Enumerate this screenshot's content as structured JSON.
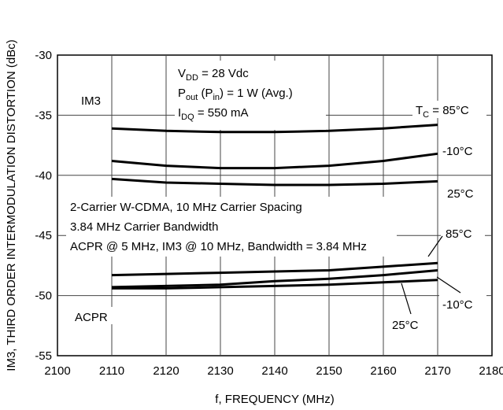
{
  "chart_data": {
    "type": "line",
    "ylabel": "IM3, THIRD ORDER INTERMODULATION DISTORTION (dBc)",
    "xlabel": "f, FREQUENCY (MHz)",
    "xlim": [
      2100,
      2180
    ],
    "ylim": [
      -55,
      -30
    ],
    "x_ticks": [
      "2100",
      "2110",
      "2120",
      "2130",
      "2140",
      "2150",
      "2160",
      "2170",
      "2180"
    ],
    "y_ticks": [
      "-30",
      "-35",
      "-40",
      "-45",
      "-50",
      "-55"
    ],
    "grid": true,
    "conditions": {
      "vdd": {
        "main": "V",
        "sub": "DD",
        "rest": " = 28 Vdc"
      },
      "pout": {
        "p1": "P",
        "s1": "out",
        "p2": " (P",
        "s2": "in",
        "p3": ") = 1 W (Avg.)"
      },
      "idq": {
        "main": "I",
        "sub": "DQ",
        "rest": " = 550 mA"
      }
    },
    "annotations": {
      "signal_line1": "2-Carrier W-CDMA, 10 MHz Carrier Spacing",
      "signal_line2": "3.84 MHz Carrier Bandwidth",
      "signal_line3": "ACPR @ 5 MHz, IM3 @ 10 MHz, Bandwidth = 3.84 MHz",
      "im3_label": "IM3",
      "acpr_label": "ACPR",
      "tc_main": "T",
      "tc_sub": "C",
      "tc_rest": " = 85°C",
      "im3_minus10": "-10°C",
      "im3_25": "25°C",
      "acpr_85": "85°C",
      "acpr_minus10": "-10°C",
      "acpr_25": "25°C"
    },
    "series": [
      {
        "group": "IM3",
        "temperature": "85°C",
        "x": [
          2110,
          2120,
          2130,
          2140,
          2150,
          2160,
          2170
        ],
        "y": [
          -36.1,
          -36.3,
          -36.4,
          -36.4,
          -36.3,
          -36.1,
          -35.8
        ]
      },
      {
        "group": "IM3",
        "temperature": "-10°C",
        "x": [
          2110,
          2120,
          2130,
          2140,
          2150,
          2160,
          2170
        ],
        "y": [
          -38.8,
          -39.2,
          -39.4,
          -39.4,
          -39.2,
          -38.8,
          -38.2
        ]
      },
      {
        "group": "IM3",
        "temperature": "25°C",
        "x": [
          2110,
          2120,
          2130,
          2140,
          2150,
          2160,
          2170
        ],
        "y": [
          -40.3,
          -40.6,
          -40.7,
          -40.8,
          -40.8,
          -40.7,
          -40.5
        ]
      },
      {
        "group": "ACPR",
        "temperature": "85°C",
        "x": [
          2110,
          2120,
          2130,
          2140,
          2150,
          2160,
          2170
        ],
        "y": [
          -48.3,
          -48.2,
          -48.1,
          -48.0,
          -47.9,
          -47.6,
          -47.3
        ]
      },
      {
        "group": "ACPR",
        "temperature": "-10°C",
        "x": [
          2110,
          2120,
          2130,
          2140,
          2150,
          2160,
          2170
        ],
        "y": [
          -49.3,
          -49.2,
          -49.1,
          -48.8,
          -48.6,
          -48.3,
          -47.9
        ]
      },
      {
        "group": "ACPR",
        "temperature": "25°C",
        "x": [
          2110,
          2120,
          2130,
          2140,
          2150,
          2160,
          2170
        ],
        "y": [
          -49.4,
          -49.4,
          -49.3,
          -49.2,
          -49.1,
          -48.9,
          -48.7
        ]
      }
    ]
  }
}
